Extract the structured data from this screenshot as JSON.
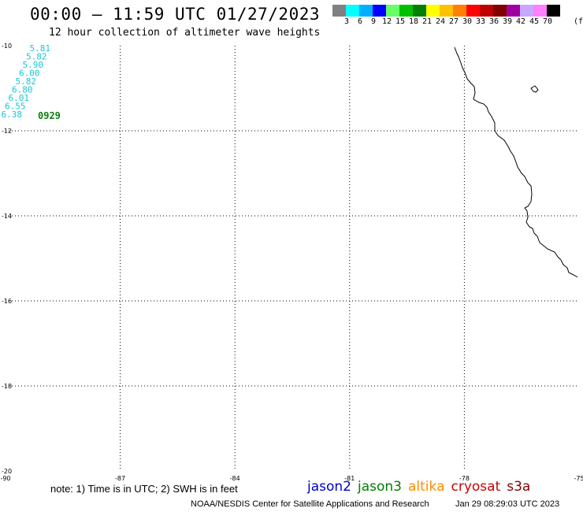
{
  "header": {
    "title": "00:00 – 11:59 UTC 01/27/2023",
    "subtitle": "12 hour collection of altimeter wave heights"
  },
  "colorbar": {
    "colors": [
      "#808080",
      "#00ffff",
      "#00b0ff",
      "#0000ff",
      "#66ff66",
      "#00c000",
      "#008000",
      "#ffff00",
      "#ffc000",
      "#ff8000",
      "#ff0000",
      "#c00000",
      "#800000",
      "#a000a0",
      "#c8a8ff",
      "#ff80ff",
      "#000000"
    ],
    "labels": [
      "3",
      "6",
      "9",
      "12",
      "15",
      "18",
      "21",
      "24",
      "27",
      "30",
      "33",
      "36",
      "39",
      "42",
      "45",
      "70"
    ],
    "unit": "(ft)"
  },
  "map": {
    "lon_ticks": [
      "-90",
      "-87",
      "-84",
      "-81",
      "-78",
      "-75"
    ],
    "lat_ticks": [
      "-10",
      "-12",
      "-14",
      "-16",
      "-18",
      "-20"
    ]
  },
  "observations": {
    "wave_heights": [
      "5.81",
      "5.82",
      "5.90",
      "6.00",
      "5.82",
      "6.80",
      "6.01",
      "6.55",
      "6.38"
    ],
    "time_label": "0929",
    "satellite": "jason3"
  },
  "footer": {
    "note": "note: 1) Time is in UTC; 2) SWH is in feet",
    "legend": [
      {
        "name": "jason2",
        "color": "#0000cc"
      },
      {
        "name": "jason3",
        "color": "#008000"
      },
      {
        "name": "altika",
        "color": "#ff8c00"
      },
      {
        "name": "cryosat",
        "color": "#cc0000"
      },
      {
        "name": "s3a",
        "color": "#800000"
      }
    ],
    "credit": "NOAA/NESDIS Center for Satellite Applications and Research",
    "timestamp": "Jan 29 08:29:03 UTC 2023"
  }
}
